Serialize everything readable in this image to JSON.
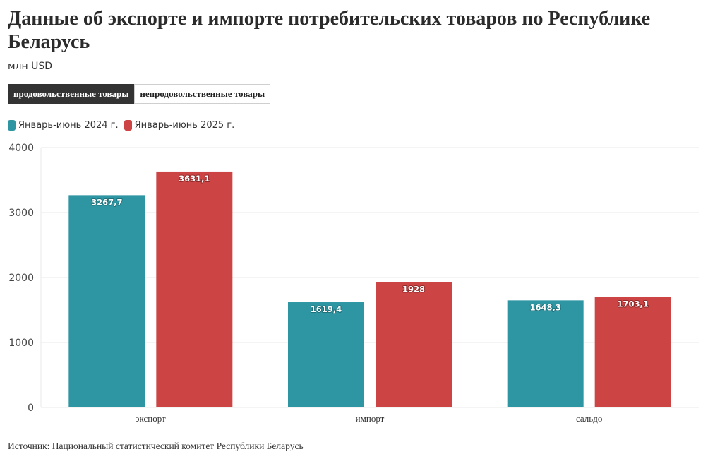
{
  "title": "Данные об экспорте и импорте потребительских товаров по Республике Беларусь",
  "subtitle": "млн USD",
  "tabs": [
    {
      "label": "продовольственные товары",
      "active": true
    },
    {
      "label": "непродовольственные товары",
      "active": false
    }
  ],
  "source": "Источник: Национальный статистический комитет Республики Беларусь",
  "chart_data": {
    "type": "bar",
    "categories": [
      "экспорт",
      "импорт",
      "сальдо"
    ],
    "series": [
      {
        "name": "Январь-июнь 2024 г.",
        "color": "#2e96a3",
        "values": [
          3267.7,
          1619.4,
          1648.3
        ],
        "labels": [
          "3267,7",
          "1619,4",
          "1648,3"
        ]
      },
      {
        "name": "Январь-июнь 2025 г.",
        "color": "#cc4444",
        "values": [
          3631.1,
          1928,
          1703.1
        ],
        "labels": [
          "3631,1",
          "1928",
          "1703,1"
        ]
      }
    ],
    "ylim": [
      0,
      4000
    ],
    "yticks": [
      0,
      1000,
      2000,
      3000,
      4000
    ],
    "ytick_labels": [
      "0",
      "1000",
      "2000",
      "3000",
      "4000"
    ],
    "grid": true,
    "legend_position": "top-left"
  }
}
